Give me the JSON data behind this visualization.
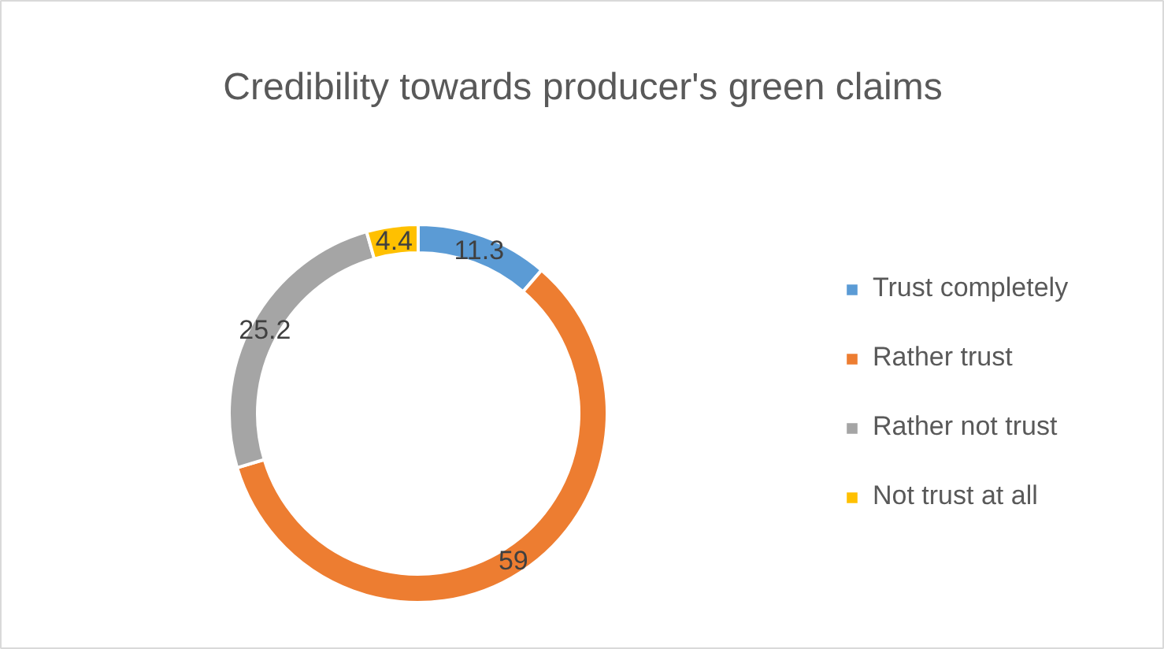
{
  "chart_data": {
    "type": "donut",
    "title": "Credibility towards producer's green claims",
    "categories": [
      "Trust completely",
      "Rather trust",
      "Rather not trust",
      "Not trust at all"
    ],
    "values": [
      11.3,
      59,
      25.2,
      4.4
    ],
    "colors": [
      "#5b9bd5",
      "#ed7d31",
      "#a5a5a5",
      "#ffc000"
    ],
    "data_labels": true,
    "legend": "right"
  }
}
